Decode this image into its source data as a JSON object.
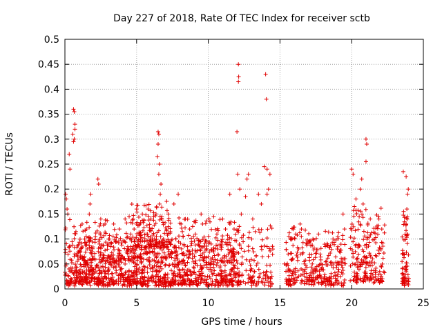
{
  "chart_data": {
    "type": "scatter",
    "title": "Day 227 of 2018, Rate Of TEC Index for receiver sctb",
    "xlabel": "GPS time / hours",
    "ylabel": "ROTI / TECUs",
    "xlim": [
      0,
      25
    ],
    "ylim": [
      0,
      0.5
    ],
    "xticks": [
      0,
      5,
      10,
      15,
      20,
      25
    ],
    "xtick_labels": [
      "0",
      "5",
      "10",
      "15",
      "20",
      "25"
    ],
    "yticks": [
      0,
      0.05,
      0.1,
      0.15,
      0.2,
      0.25,
      0.3,
      0.35,
      0.4,
      0.45,
      0.5
    ],
    "ytick_labels": [
      "0",
      "0.05",
      "0.1",
      "0.15",
      "0.2",
      "0.25",
      "0.3",
      "0.35",
      "0.4",
      "0.45",
      "0.5"
    ],
    "grid": true,
    "marker": "+",
    "color": "#e00000",
    "series": [
      {
        "name": "ROTI",
        "points": [
          [
            0.05,
            0.19
          ],
          [
            0.1,
            0.18
          ],
          [
            0.15,
            0.16
          ],
          [
            0.2,
            0.15
          ],
          [
            0.3,
            0.27
          ],
          [
            0.35,
            0.24
          ],
          [
            0.6,
            0.36
          ],
          [
            0.65,
            0.355
          ],
          [
            0.7,
            0.33
          ],
          [
            0.55,
            0.31
          ],
          [
            0.6,
            0.295
          ],
          [
            0.65,
            0.3
          ],
          [
            0.7,
            0.32
          ],
          [
            1.2,
            0.13
          ],
          [
            1.5,
            0.12
          ],
          [
            1.7,
            0.15
          ],
          [
            1.8,
            0.19
          ],
          [
            1.75,
            0.17
          ],
          [
            2.3,
            0.22
          ],
          [
            2.35,
            0.21
          ],
          [
            2.5,
            0.14
          ],
          [
            2.8,
            0.13
          ],
          [
            3.1,
            0.1
          ],
          [
            3.4,
            0.13
          ],
          [
            3.8,
            0.12
          ],
          [
            4.2,
            0.14
          ],
          [
            4.6,
            0.11
          ],
          [
            5.0,
            0.16
          ],
          [
            5.4,
            0.15
          ],
          [
            5.8,
            0.16
          ],
          [
            6.0,
            0.14
          ],
          [
            6.5,
            0.315
          ],
          [
            6.55,
            0.31
          ],
          [
            6.5,
            0.29
          ],
          [
            6.45,
            0.265
          ],
          [
            6.6,
            0.25
          ],
          [
            6.55,
            0.23
          ],
          [
            6.7,
            0.21
          ],
          [
            6.65,
            0.19
          ],
          [
            6.6,
            0.17
          ],
          [
            7.2,
            0.15
          ],
          [
            7.6,
            0.17
          ],
          [
            7.9,
            0.19
          ],
          [
            8.1,
            0.13
          ],
          [
            8.4,
            0.14
          ],
          [
            8.7,
            0.12
          ],
          [
            9.1,
            0.11
          ],
          [
            9.5,
            0.15
          ],
          [
            9.6,
            0.13
          ],
          [
            10.2,
            0.09
          ],
          [
            10.6,
            0.11
          ],
          [
            11.0,
            0.14
          ],
          [
            11.2,
            0.12
          ],
          [
            11.5,
            0.19
          ],
          [
            11.8,
            0.12
          ],
          [
            12.0,
            0.315
          ],
          [
            12.05,
            0.23
          ],
          [
            12.1,
            0.45
          ],
          [
            12.12,
            0.425
          ],
          [
            12.1,
            0.415
          ],
          [
            12.2,
            0.2
          ],
          [
            12.3,
            0.15
          ],
          [
            12.6,
            0.185
          ],
          [
            12.8,
            0.23
          ],
          [
            12.7,
            0.22
          ],
          [
            13.1,
            0.14
          ],
          [
            13.5,
            0.19
          ],
          [
            13.7,
            0.17
          ],
          [
            14.0,
            0.43
          ],
          [
            14.05,
            0.38
          ],
          [
            13.9,
            0.245
          ],
          [
            14.1,
            0.24
          ],
          [
            14.3,
            0.23
          ],
          [
            14.2,
            0.2
          ],
          [
            14.1,
            0.19
          ],
          [
            14.5,
            0.08
          ],
          [
            15.3,
            0.05
          ],
          [
            15.6,
            0.04
          ],
          [
            16.1,
            0.11
          ],
          [
            16.4,
            0.13
          ],
          [
            16.5,
            0.12
          ],
          [
            16.9,
            0.09
          ],
          [
            17.3,
            0.1
          ],
          [
            17.8,
            0.07
          ],
          [
            18.3,
            0.09
          ],
          [
            18.7,
            0.1
          ],
          [
            19.0,
            0.08
          ],
          [
            19.4,
            0.15
          ],
          [
            19.5,
            0.12
          ],
          [
            20.0,
            0.24
          ],
          [
            20.1,
            0.23
          ],
          [
            20.3,
            0.18
          ],
          [
            20.6,
            0.2
          ],
          [
            20.7,
            0.22
          ],
          [
            20.8,
            0.17
          ],
          [
            21.0,
            0.3
          ],
          [
            21.05,
            0.29
          ],
          [
            21.0,
            0.255
          ],
          [
            21.3,
            0.14
          ],
          [
            21.9,
            0.14
          ],
          [
            22.1,
            0.12
          ],
          [
            23.6,
            0.235
          ],
          [
            23.8,
            0.225
          ],
          [
            23.9,
            0.19
          ],
          [
            23.95,
            0.2
          ],
          [
            23.85,
            0.16
          ],
          [
            23.8,
            0.13
          ],
          [
            23.9,
            0.11
          ]
        ],
        "clusters": [
          {
            "x": [
              0,
              12
            ],
            "y": [
              0.005,
              0.1
            ],
            "n": 1100
          },
          {
            "x": [
              0,
              12
            ],
            "y": [
              0.05,
              0.14
            ],
            "n": 260
          },
          {
            "x": [
              4.6,
              7.4
            ],
            "y": [
              0.08,
              0.17
            ],
            "n": 120
          },
          {
            "x": [
              12.0,
              14.5
            ],
            "y": [
              0.005,
              0.12
            ],
            "n": 130
          },
          {
            "x": [
              15.4,
              16.9
            ],
            "y": [
              0.005,
              0.12
            ],
            "n": 110
          },
          {
            "x": [
              17.0,
              19.6
            ],
            "y": [
              0.005,
              0.11
            ],
            "n": 200
          },
          {
            "x": [
              19.9,
              22.3
            ],
            "y": [
              0.01,
              0.16
            ],
            "n": 200
          },
          {
            "x": [
              23.5,
              24.0
            ],
            "y": [
              0.005,
              0.15
            ],
            "n": 70
          }
        ]
      }
    ]
  }
}
